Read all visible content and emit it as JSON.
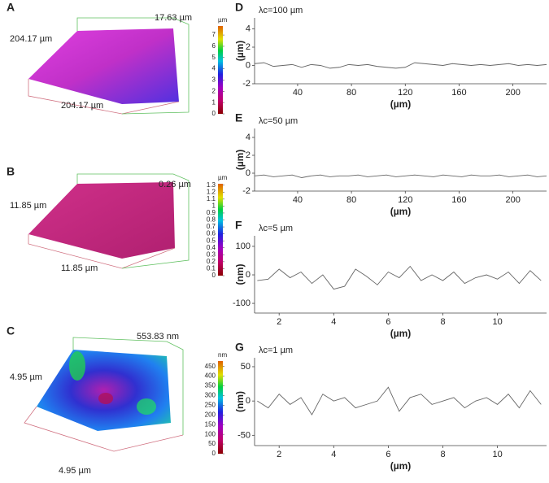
{
  "chart_data": [
    {
      "type": "surface",
      "panel": "A",
      "height_label": "17.63 µm",
      "side_label": "204.17 µm",
      "base_label": "204.17 µm",
      "colorbar_unit": "µm",
      "clim": [
        0,
        7.8
      ],
      "cticks": [
        0,
        1,
        2,
        3,
        4,
        5,
        6,
        7
      ]
    },
    {
      "type": "surface",
      "panel": "B",
      "height_label": "0.26 µm",
      "side_label": "11.85 µm",
      "base_label": "11.85 µm",
      "colorbar_unit": "µm",
      "clim": [
        0,
        1.32
      ],
      "cticks": [
        0,
        0.1,
        0.2,
        0.3,
        0.4,
        0.5,
        0.6,
        0.7,
        0.8,
        0.9,
        1,
        1.1,
        1.2,
        1.3
      ]
    },
    {
      "type": "surface",
      "panel": "C",
      "height_label": "553.83 nm",
      "side_label": "4.95 µm",
      "base_label": "4.95 µm",
      "colorbar_unit": "nm",
      "clim": [
        0,
        478
      ],
      "cticks": [
        0,
        50,
        100,
        150,
        200,
        250,
        300,
        350,
        400,
        450
      ]
    },
    {
      "type": "line",
      "panel": "D",
      "annotation": "λc=100 µm",
      "xlabel": "(µm)",
      "ylabel": "(µm)",
      "color": "#666666",
      "x": [
        8,
        15,
        22,
        29,
        36,
        43,
        50,
        57,
        64,
        71,
        78,
        85,
        92,
        99,
        106,
        113,
        120,
        127,
        134,
        141,
        148,
        155,
        162,
        169,
        176,
        183,
        190,
        197,
        204,
        211,
        218,
        225
      ],
      "values": [
        0.2,
        0.3,
        -0.1,
        0,
        0.1,
        -0.2,
        0.1,
        0,
        -0.3,
        -0.2,
        0.1,
        0,
        0.1,
        -0.1,
        -0.2,
        -0.3,
        -0.2,
        0.3,
        0.2,
        0.1,
        0,
        0.2,
        0.1,
        0,
        0.1,
        0,
        0.1,
        0.2,
        0,
        0.1,
        0,
        0.1
      ],
      "xlim": [
        8,
        225
      ],
      "ylim": [
        -2,
        5.2
      ],
      "xticks": [
        40,
        80,
        120,
        160,
        200
      ],
      "yticks": [
        -2,
        0,
        2,
        4
      ]
    },
    {
      "type": "line",
      "panel": "E",
      "annotation": "λc=50 µm",
      "xlabel": "(µm)",
      "ylabel": "(µm)",
      "color": "#666666",
      "x": [
        8,
        15,
        22,
        29,
        36,
        43,
        50,
        57,
        64,
        71,
        78,
        85,
        92,
        99,
        106,
        113,
        120,
        127,
        134,
        141,
        148,
        155,
        162,
        169,
        176,
        183,
        190,
        197,
        204,
        211,
        218,
        225
      ],
      "values": [
        -0.3,
        -0.2,
        -0.4,
        -0.3,
        -0.2,
        -0.5,
        -0.3,
        -0.2,
        -0.4,
        -0.3,
        -0.3,
        -0.2,
        -0.4,
        -0.3,
        -0.2,
        -0.4,
        -0.3,
        -0.2,
        -0.3,
        -0.4,
        -0.2,
        -0.3,
        -0.4,
        -0.2,
        -0.3,
        -0.3,
        -0.2,
        -0.4,
        -0.3,
        -0.2,
        -0.4,
        -0.3
      ],
      "xlim": [
        8,
        225
      ],
      "ylim": [
        -2,
        5
      ],
      "xticks": [
        40,
        80,
        120,
        160,
        200
      ],
      "yticks": [
        -2,
        0,
        2,
        4
      ]
    },
    {
      "type": "line",
      "panel": "F",
      "annotation": "λc=5 µm",
      "xlabel": "(µm)",
      "ylabel": "(nm)",
      "color": "#666666",
      "x": [
        1.2,
        1.6,
        2.0,
        2.4,
        2.8,
        3.2,
        3.6,
        4.0,
        4.4,
        4.8,
        5.2,
        5.6,
        6.0,
        6.4,
        6.8,
        7.2,
        7.6,
        8.0,
        8.4,
        8.8,
        9.2,
        9.6,
        10.0,
        10.4,
        10.8,
        11.2,
        11.6
      ],
      "values": [
        -20,
        -15,
        20,
        -10,
        10,
        -30,
        0,
        -50,
        -40,
        20,
        -5,
        -35,
        10,
        -10,
        30,
        -20,
        0,
        -20,
        10,
        -30,
        -10,
        0,
        -15,
        10,
        -30,
        15,
        -20
      ],
      "xlim": [
        1.1,
        11.8
      ],
      "ylim": [
        -134,
        137
      ],
      "xticks": [
        2,
        4,
        6,
        8,
        10
      ],
      "yticks": [
        -100,
        0,
        100
      ]
    },
    {
      "type": "line",
      "panel": "G",
      "annotation": "λc=1 µm",
      "xlabel": "(µm)",
      "ylabel": "(nm)",
      "color": "#666666",
      "x": [
        1.2,
        1.6,
        2.0,
        2.4,
        2.8,
        3.2,
        3.6,
        4.0,
        4.4,
        4.8,
        5.2,
        5.6,
        6.0,
        6.4,
        6.8,
        7.2,
        7.6,
        8.0,
        8.4,
        8.8,
        9.2,
        9.6,
        10.0,
        10.4,
        10.8,
        11.2,
        11.6
      ],
      "values": [
        0,
        -10,
        10,
        -5,
        5,
        -20,
        10,
        0,
        5,
        -10,
        -5,
        0,
        20,
        -15,
        5,
        10,
        -5,
        0,
        5,
        -10,
        0,
        5,
        -5,
        10,
        -10,
        15,
        -5
      ],
      "xlim": [
        1.1,
        11.8
      ],
      "ylim": [
        -65,
        63
      ],
      "xticks": [
        2,
        4,
        6,
        8,
        10
      ],
      "yticks": [
        -50,
        0,
        50
      ]
    }
  ]
}
